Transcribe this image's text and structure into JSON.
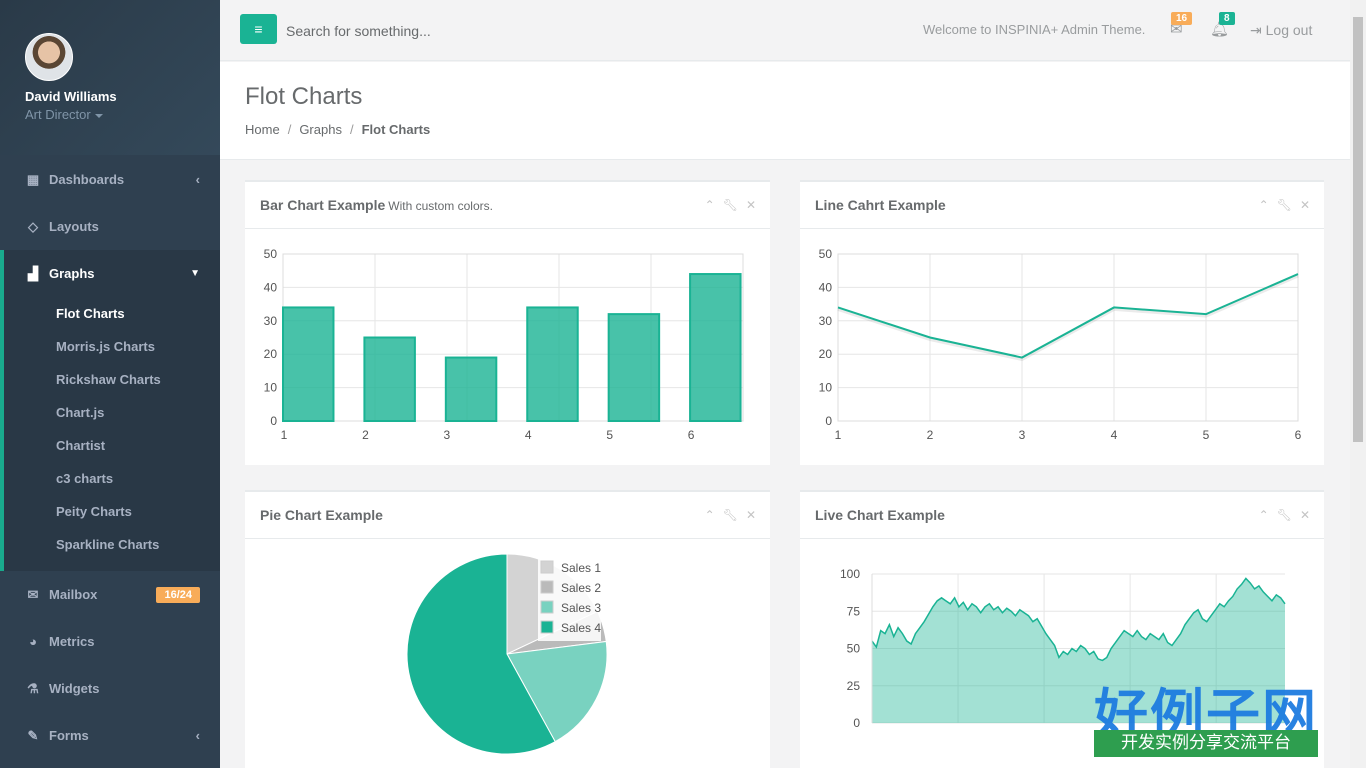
{
  "profile": {
    "name": "David Williams",
    "role": "Art Director"
  },
  "nav": {
    "dashboards": "Dashboards",
    "layouts": "Layouts",
    "graphs": "Graphs",
    "graphs_sub": [
      "Flot Charts",
      "Morris.js Charts",
      "Rickshaw Charts",
      "Chart.js",
      "Chartist",
      "c3 charts",
      "Peity Charts",
      "Sparkline Charts"
    ],
    "mailbox": "Mailbox",
    "mailbox_badge": "16/24",
    "metrics": "Metrics",
    "widgets": "Widgets",
    "forms": "Forms"
  },
  "topbar": {
    "search_placeholder": "Search for something...",
    "welcome": "Welcome to INSPINIA+ Admin Theme.",
    "mail_count": "16",
    "alert_count": "8",
    "logout": "Log out"
  },
  "heading": {
    "title": "Flot Charts",
    "breadcrumb": [
      "Home",
      "Graphs",
      "Flot Charts"
    ]
  },
  "panels": {
    "bar_title": "Bar Chart Example",
    "bar_subtitle": "With custom colors.",
    "line_title": "Line Cahrt Example",
    "pie_title": "Pie Chart Example",
    "live_title": "Live Chart Example"
  },
  "colors": {
    "accent": "#1ab394",
    "sidebar": "#2f4050",
    "warning": "#f8ac59"
  },
  "watermark": {
    "logo": "好例子网",
    "tagline": "开发实例分享交流平台"
  },
  "chart_data": [
    {
      "type": "bar",
      "categories": [
        "1",
        "2",
        "3",
        "4",
        "5",
        "6"
      ],
      "values": [
        34,
        25,
        19,
        34,
        32,
        44
      ],
      "ylim": [
        0,
        50
      ],
      "yticks": [
        0,
        10,
        20,
        30,
        40,
        50
      ],
      "grid": true
    },
    {
      "type": "line",
      "x": [
        1,
        2,
        3,
        4,
        5,
        6
      ],
      "values": [
        34,
        25,
        19,
        34,
        32,
        44
      ],
      "ylim": [
        0,
        50
      ],
      "yticks": [
        0,
        10,
        20,
        30,
        40,
        50
      ],
      "grid": true
    },
    {
      "type": "pie",
      "series": [
        {
          "name": "Sales 1",
          "value": 18,
          "color": "#d3d3d3"
        },
        {
          "name": "Sales 2",
          "value": 5,
          "color": "#bababa"
        },
        {
          "name": "Sales 3",
          "value": 19,
          "color": "#79d2c0"
        },
        {
          "name": "Sales 4",
          "value": 58,
          "color": "#1ab394"
        }
      ],
      "legend": "top-right"
    },
    {
      "type": "area",
      "ylim": [
        0,
        100
      ],
      "yticks": [
        0,
        25,
        50,
        75,
        100
      ],
      "values": [
        55,
        51,
        62,
        60,
        66,
        58,
        64,
        60,
        55,
        53,
        60,
        64,
        68,
        73,
        78,
        82,
        84,
        82,
        80,
        84,
        78,
        81,
        76,
        80,
        78,
        74,
        78,
        80,
        76,
        78,
        74,
        77,
        75,
        72,
        76,
        74,
        72,
        68,
        70,
        65,
        60,
        56,
        52,
        44,
        48,
        46,
        50,
        48,
        52,
        50,
        46,
        48,
        43,
        42,
        44,
        50,
        54,
        58,
        62,
        60,
        58,
        62,
        58,
        56,
        60,
        58,
        56,
        60,
        54,
        52,
        56,
        60,
        66,
        70,
        74,
        76,
        70,
        68,
        72,
        76,
        80,
        78,
        82,
        85,
        90,
        93,
        97,
        94,
        90,
        92,
        88,
        85,
        82,
        86,
        84,
        80
      ],
      "grid": true
    }
  ]
}
